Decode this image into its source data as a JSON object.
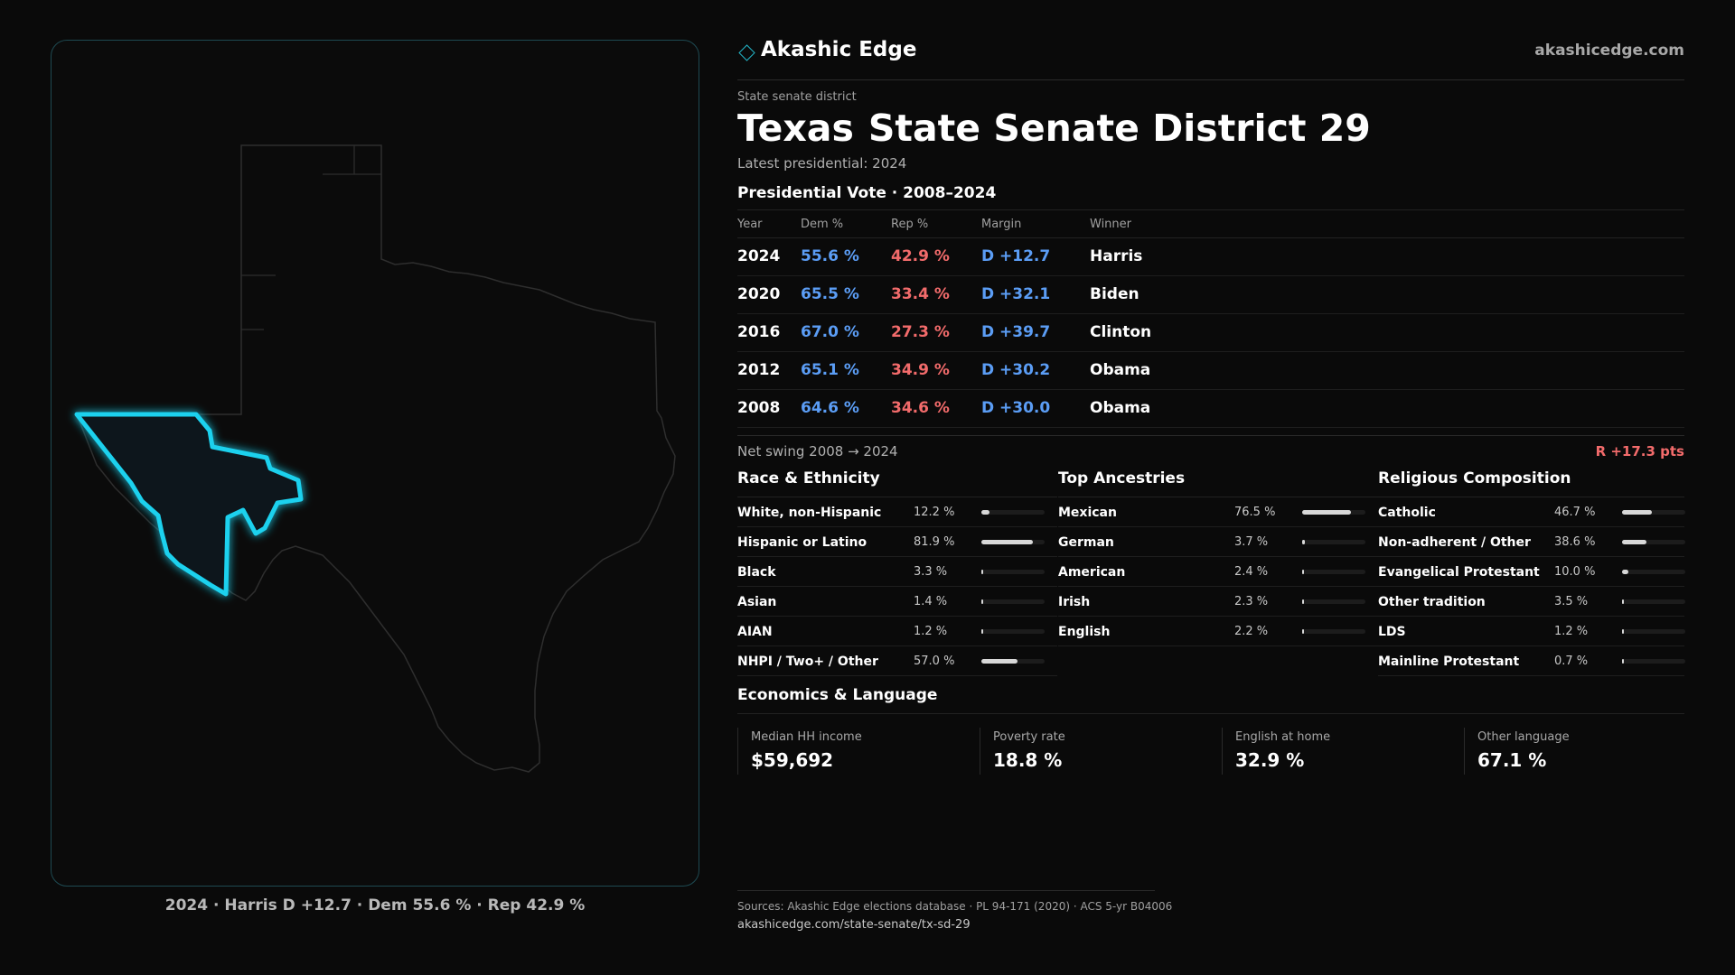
{
  "brand": {
    "name": "Akashic Edge",
    "url": "akashicedge.com"
  },
  "district": {
    "kind": "State senate district",
    "state": "Texas",
    "name": "State Senate District 29",
    "latest": "Latest presidential: 2024"
  },
  "presidential": {
    "title": "Presidential Vote · 2008–2024",
    "headers": [
      "Year",
      "Dem %",
      "Rep %",
      "Margin",
      "Winner"
    ],
    "rows": [
      {
        "year": "2024",
        "dem": "55.6 %",
        "rep": "42.9 %",
        "margin": "D +12.7",
        "winner": "Harris"
      },
      {
        "year": "2020",
        "dem": "65.5 %",
        "rep": "33.4 %",
        "margin": "D +32.1",
        "winner": "Biden"
      },
      {
        "year": "2016",
        "dem": "67.0 %",
        "rep": "27.3 %",
        "margin": "D +39.7",
        "winner": "Clinton"
      },
      {
        "year": "2012",
        "dem": "65.1 %",
        "rep": "34.9 %",
        "margin": "D +30.2",
        "winner": "Obama"
      },
      {
        "year": "2008",
        "dem": "64.6 %",
        "rep": "34.6 %",
        "margin": "D +30.0",
        "winner": "Obama"
      }
    ]
  },
  "swing": {
    "label": "Net swing 2008 → 2024",
    "value": "R +17.3 pts"
  },
  "race": {
    "title": "Race & Ethnicity",
    "rows": [
      {
        "name": "White, non-Hispanic",
        "pct": "12.2 %",
        "share": 0.122
      },
      {
        "name": "Hispanic or Latino",
        "pct": "81.9 %",
        "share": 0.819
      },
      {
        "name": "Black",
        "pct": "3.3 %",
        "share": 0.033
      },
      {
        "name": "Asian",
        "pct": "1.4 %",
        "share": 0.014
      },
      {
        "name": "AIAN",
        "pct": "1.2 %",
        "share": 0.012
      },
      {
        "name": "NHPI / Two+ / Other",
        "pct": "57.0 %",
        "share": 0.57
      }
    ]
  },
  "ancestry": {
    "title": "Top Ancestries",
    "rows": [
      {
        "name": "Mexican",
        "pct": "76.5 %",
        "share": 0.765
      },
      {
        "name": "German",
        "pct": "3.7 %",
        "share": 0.037
      },
      {
        "name": "American",
        "pct": "2.4 %",
        "share": 0.024
      },
      {
        "name": "Irish",
        "pct": "2.3 %",
        "share": 0.023
      },
      {
        "name": "English",
        "pct": "2.2 %",
        "share": 0.022
      }
    ]
  },
  "religion": {
    "title": "Religious Composition",
    "rows": [
      {
        "name": "Catholic",
        "pct": "46.7 %",
        "share": 0.467
      },
      {
        "name": "Non-adherent / Other",
        "pct": "38.6 %",
        "share": 0.386
      },
      {
        "name": "Evangelical Protestant",
        "pct": "10.0 %",
        "share": 0.1
      },
      {
        "name": "Other tradition",
        "pct": "3.5 %",
        "share": 0.035
      },
      {
        "name": "LDS",
        "pct": "1.2 %",
        "share": 0.012
      },
      {
        "name": "Mainline Protestant",
        "pct": "0.7 %",
        "share": 0.007
      }
    ]
  },
  "economics": {
    "title": "Economics & Language",
    "stats": [
      {
        "label": "Median HH income",
        "value": "$59,692"
      },
      {
        "label": "Poverty rate",
        "value": "18.8 %"
      },
      {
        "label": "English at home",
        "value": "32.9 %"
      },
      {
        "label": "Other language",
        "value": "67.1 %"
      }
    ]
  },
  "map_caption": "2024 · Harris D +12.7 · Dem 55.6 % · Rep 42.9 %",
  "sources": {
    "line1": "Sources: Akashic Edge elections database · PL 94-171 (2020) · ACS 5-yr B04006",
    "line2": "akashicedge.com/state-senate/tx-sd-29"
  },
  "colors": {
    "dem": "#5b9df5",
    "rep": "#f26b6b",
    "accent": "#23b5c8"
  }
}
